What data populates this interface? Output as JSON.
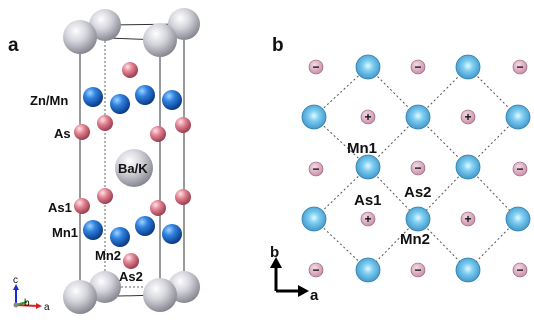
{
  "panel_a": {
    "letter": "a",
    "labels": {
      "zn_mn": "Zn/Mn",
      "as": "As",
      "ba_k": "Ba/K",
      "as1": "As1",
      "mn1": "Mn1",
      "mn2": "Mn2",
      "as2": "As2"
    },
    "axes": {
      "c": "c",
      "b": "b",
      "a": "a"
    }
  },
  "panel_b": {
    "letter": "b",
    "labels": {
      "mn1": "Mn1",
      "as1": "As1",
      "as2": "As2",
      "mn2": "Mn2"
    },
    "axes": {
      "b": "b",
      "a": "a"
    },
    "symbols": {
      "minus": "−",
      "plus": "+"
    }
  },
  "colors": {
    "mn_blue": "#1e6fd6",
    "mn_light_blue": "#5ab3e6",
    "as_pink": "#d87a8c",
    "ion_pink": "#dba0b8",
    "ba_gray": "#c4c4cc",
    "axis_c": "#1b2ad8",
    "axis_b": "#23a023",
    "axis_a": "#d82121"
  }
}
